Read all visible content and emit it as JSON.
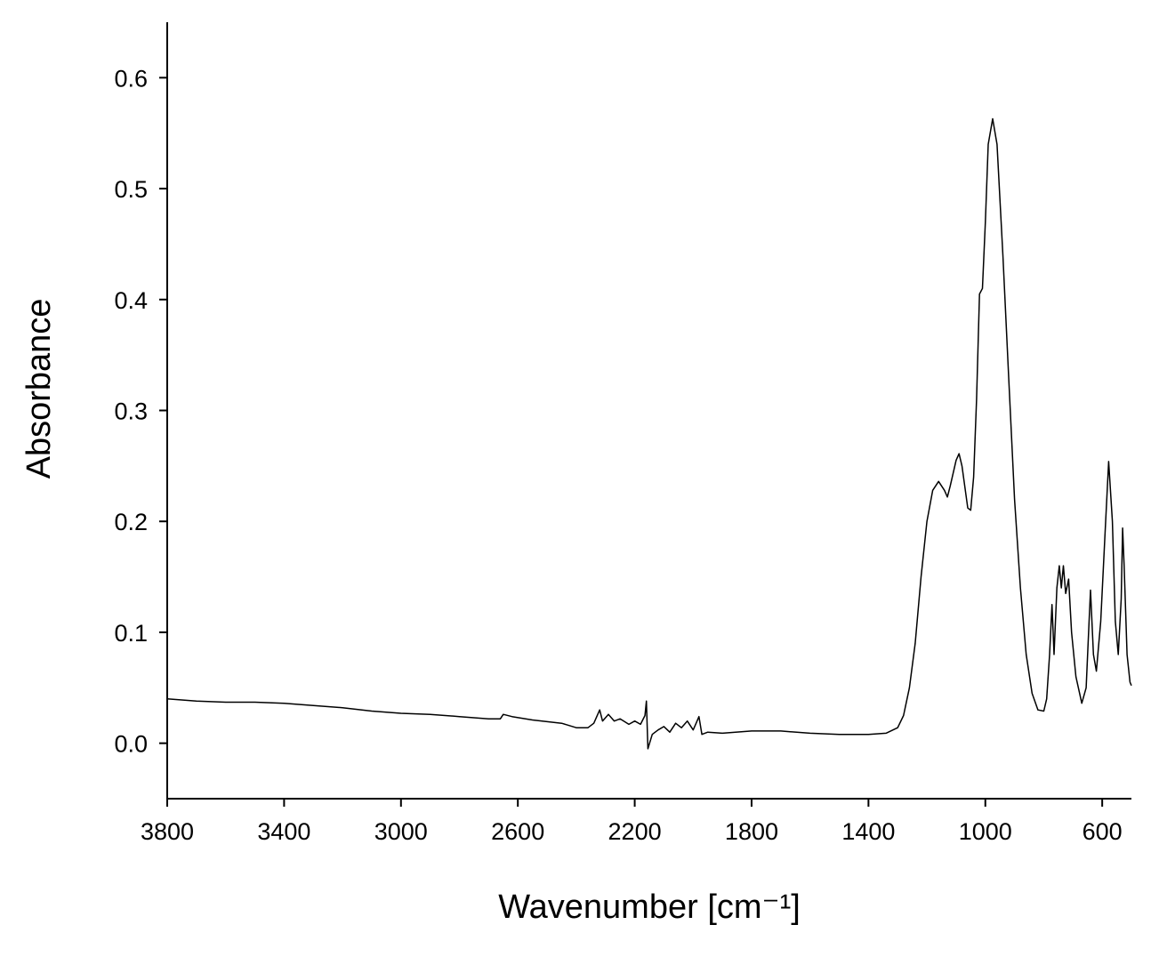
{
  "chart_data": {
    "type": "line",
    "x_label": "Wavenumber [cm⁻¹]",
    "y_label": "Absorbance",
    "color": "#000000",
    "x": [
      3800,
      3700,
      3600,
      3500,
      3400,
      3300,
      3200,
      3100,
      3000,
      2900,
      2800,
      2700,
      2660,
      2650,
      2620,
      2550,
      2450,
      2400,
      2360,
      2340,
      2320,
      2310,
      2290,
      2270,
      2250,
      2220,
      2200,
      2180,
      2165,
      2160,
      2155,
      2140,
      2120,
      2100,
      2080,
      2060,
      2040,
      2020,
      2000,
      1990,
      1980,
      1970,
      1950,
      1900,
      1800,
      1700,
      1600,
      1500,
      1400,
      1340,
      1300,
      1280,
      1260,
      1240,
      1220,
      1200,
      1180,
      1160,
      1140,
      1130,
      1120,
      1100,
      1090,
      1080,
      1060,
      1050,
      1040,
      1030,
      1020,
      1010,
      1000,
      990,
      975,
      960,
      940,
      920,
      900,
      880,
      860,
      840,
      820,
      800,
      790,
      780,
      772,
      765,
      755,
      747,
      740,
      733,
      725,
      715,
      705,
      690,
      670,
      655,
      645,
      640,
      630,
      620,
      605,
      590,
      578,
      565,
      555,
      545,
      535,
      530,
      525,
      515,
      505,
      500
    ],
    "values": [
      0.04,
      0.038,
      0.037,
      0.037,
      0.036,
      0.034,
      0.032,
      0.029,
      0.027,
      0.026,
      0.024,
      0.022,
      0.022,
      0.026,
      0.024,
      0.021,
      0.018,
      0.014,
      0.014,
      0.018,
      0.03,
      0.02,
      0.026,
      0.02,
      0.022,
      0.017,
      0.02,
      0.017,
      0.025,
      0.038,
      -0.005,
      0.008,
      0.012,
      0.015,
      0.01,
      0.018,
      0.014,
      0.02,
      0.012,
      0.018,
      0.024,
      0.008,
      0.01,
      0.009,
      0.011,
      0.011,
      0.009,
      0.008,
      0.008,
      0.009,
      0.014,
      0.025,
      0.05,
      0.09,
      0.15,
      0.2,
      0.228,
      0.236,
      0.228,
      0.222,
      0.232,
      0.255,
      0.261,
      0.25,
      0.212,
      0.21,
      0.24,
      0.31,
      0.405,
      0.41,
      0.47,
      0.54,
      0.563,
      0.54,
      0.44,
      0.33,
      0.22,
      0.14,
      0.08,
      0.045,
      0.03,
      0.029,
      0.04,
      0.08,
      0.125,
      0.08,
      0.14,
      0.16,
      0.14,
      0.16,
      0.135,
      0.148,
      0.1,
      0.06,
      0.036,
      0.05,
      0.11,
      0.138,
      0.08,
      0.065,
      0.11,
      0.19,
      0.254,
      0.2,
      0.11,
      0.08,
      0.13,
      0.194,
      0.16,
      0.08,
      0.055,
      0.052
    ],
    "xlim": [
      3800,
      500
    ],
    "ylim": [
      -0.05,
      0.65
    ],
    "xticks": [
      3800,
      3400,
      3000,
      2600,
      2200,
      1800,
      1400,
      1000,
      600
    ],
    "yticks": [
      {
        "value": 0,
        "label": "0.0"
      },
      0.1,
      0.2,
      0.3,
      0.4,
      0.5,
      0.6
    ]
  }
}
